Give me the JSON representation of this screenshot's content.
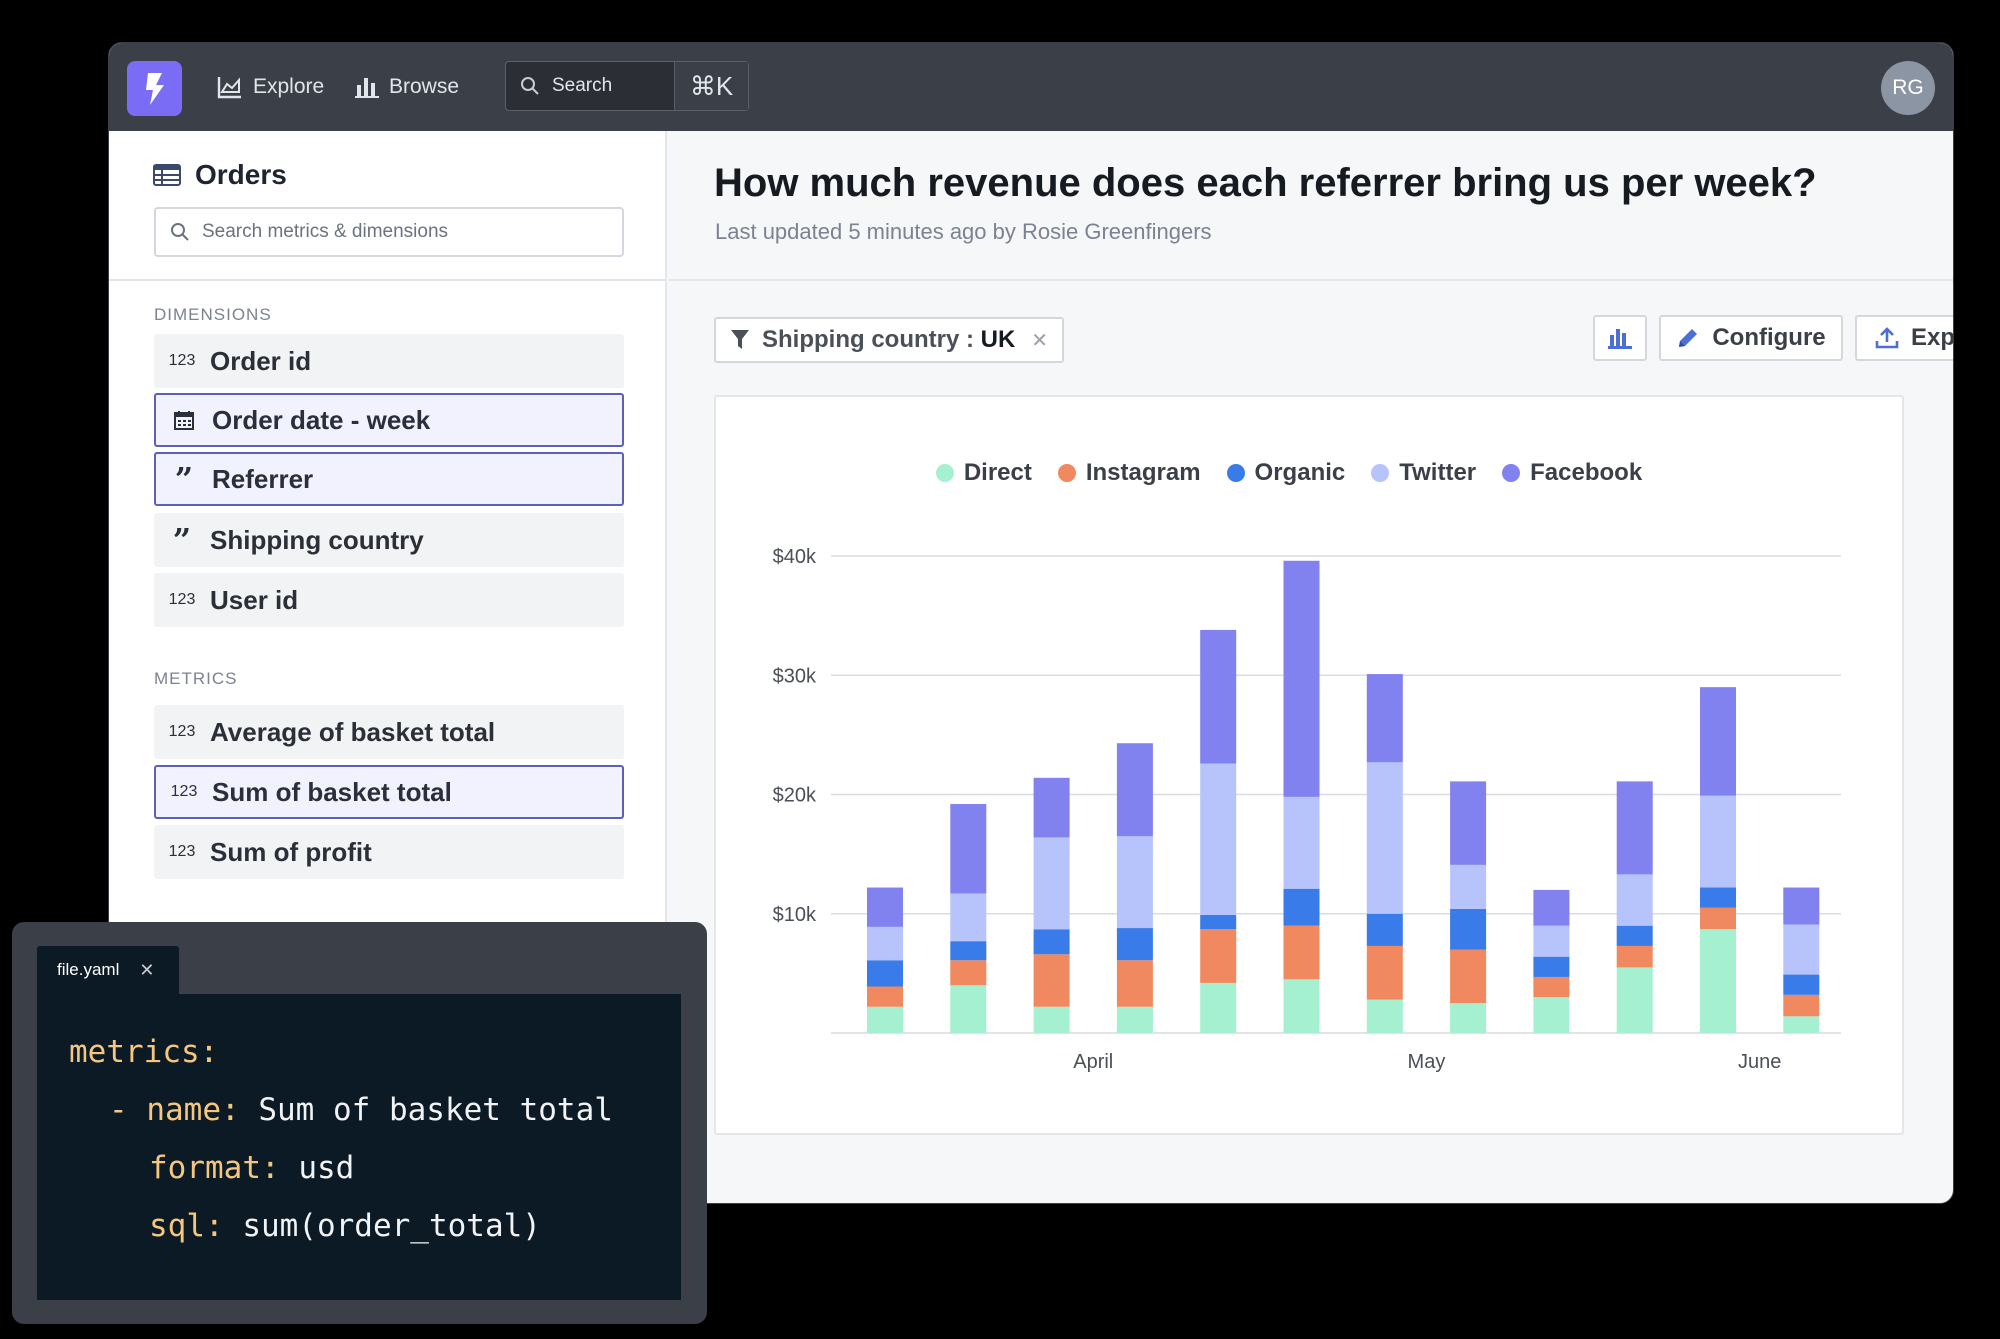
{
  "topbar": {
    "nav": [
      {
        "label": "Explore",
        "icon": "chart-area-icon"
      },
      {
        "label": "Browse",
        "icon": "bar-chart-icon"
      }
    ],
    "search": {
      "label": "Search",
      "shortcut": "⌘K"
    },
    "avatar": "RG"
  },
  "sidebar": {
    "title": "Orders",
    "search_placeholder": "Search metrics & dimensions",
    "dimensions_heading": "DIMENSIONS",
    "dimensions": [
      {
        "label": "Order id",
        "type": "123",
        "selected": false
      },
      {
        "label": "Order date - week",
        "type": "calendar",
        "selected": true
      },
      {
        "label": "Referrer",
        "type": "quote",
        "selected": true
      },
      {
        "label": "Shipping country",
        "type": "quote",
        "selected": false
      },
      {
        "label": "User id",
        "type": "123",
        "selected": false
      }
    ],
    "metrics_heading": "METRICS",
    "metrics": [
      {
        "label": "Average of basket total",
        "type": "123",
        "selected": false
      },
      {
        "label": "Sum of basket total",
        "type": "123",
        "selected": true
      },
      {
        "label": "Sum of profit",
        "type": "123",
        "selected": false
      }
    ]
  },
  "main": {
    "title": "How much revenue does each referrer bring us per week?",
    "subtitle": "Last updated 5 minutes ago by Rosie Greenfingers",
    "filter": {
      "field": "Shipping country : ",
      "value": "UK"
    },
    "configure_label": "Configure",
    "export_label": "Export"
  },
  "chart_data": {
    "type": "bar",
    "stacked": true,
    "categories": [
      "",
      "",
      "",
      "",
      "",
      "",
      "",
      "",
      "",
      "",
      "",
      ""
    ],
    "x_tick_labels": [
      {
        "label": "April",
        "position": 2.5
      },
      {
        "label": "May",
        "position": 6.5
      },
      {
        "label": "June",
        "position": 10.5
      }
    ],
    "series": [
      {
        "name": "Direct",
        "color": "#a6f0d2",
        "values": [
          2200,
          4000,
          2200,
          2200,
          4200,
          4500,
          2800,
          2500,
          3000,
          5500,
          8700,
          1400
        ]
      },
      {
        "name": "Instagram",
        "color": "#f0895f",
        "values": [
          1700,
          2100,
          4400,
          3900,
          4500,
          4500,
          4500,
          4500,
          1700,
          1800,
          1800,
          1800
        ]
      },
      {
        "name": "Organic",
        "color": "#3a7bea",
        "values": [
          2200,
          1600,
          2100,
          2700,
          1200,
          3100,
          2700,
          3400,
          1700,
          1700,
          1700,
          1700
        ]
      },
      {
        "name": "Twitter",
        "color": "#b6c4fb",
        "values": [
          2800,
          4000,
          7700,
          7700,
          12700,
          7700,
          12700,
          3700,
          2600,
          4300,
          7700,
          4200
        ]
      },
      {
        "name": "Facebook",
        "color": "#8181ef",
        "values": [
          3300,
          7500,
          5000,
          7800,
          11200,
          19800,
          7400,
          7000,
          3000,
          7800,
          9100,
          3100
        ]
      }
    ],
    "yticks": [
      "$10k",
      "$20k",
      "$30k",
      "$40k"
    ],
    "ylim": [
      0,
      40000
    ],
    "legend_position": "top-center",
    "grid": true
  },
  "code": {
    "tab_label": "file.yaml",
    "lines": [
      {
        "key": "metrics:",
        "value": ""
      },
      {
        "key": "- name:",
        "value": " Sum of basket total"
      },
      {
        "key": "format:",
        "value": " usd"
      },
      {
        "key": "sql:",
        "value": " sum(order_total)"
      }
    ]
  }
}
